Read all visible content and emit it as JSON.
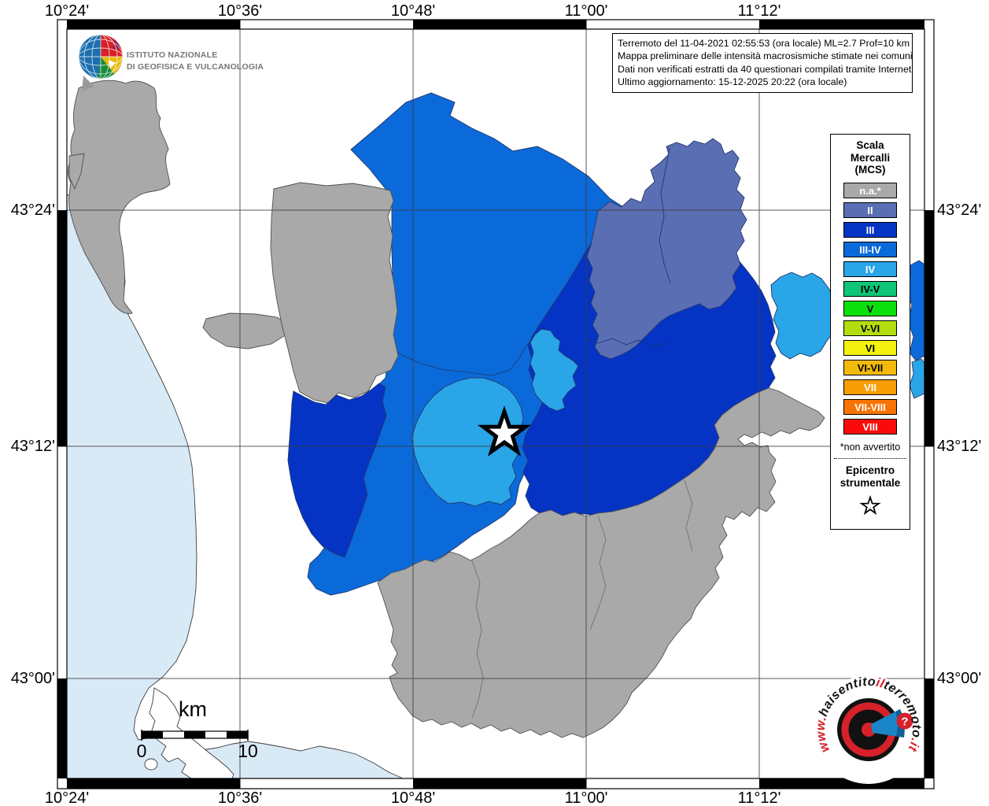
{
  "info_box": {
    "lines": [
      "Terremoto del 11-04-2021 02:55:53 (ora locale) ML=2.7 Prof=10 km",
      "Mappa preliminare delle intensità macrosismiche stimate nei comuni",
      "Dati non verificati estratti da 40 questionari compilati tramite Internet.",
      "Ultimo aggiornamento: 15-12-2025 20:22 (ora locale)"
    ]
  },
  "ingv": {
    "line1": "ISTITUTO NAZIONALE",
    "line2": "DI GEOFISICA E VULCANOLOGIA"
  },
  "legend": {
    "title_lines": [
      "Scala",
      "Mercalli",
      "(MCS)"
    ],
    "items": [
      {
        "label": "n.a.*",
        "color": "#a9a9a9",
        "text_color": "#ffffff"
      },
      {
        "label": "II",
        "color": "#5a6eb4",
        "text_color": "#ffffff"
      },
      {
        "label": "III",
        "color": "#0534c4",
        "text_color": "#ffffff"
      },
      {
        "label": "III-IV",
        "color": "#0b6ada",
        "text_color": "#ffffff"
      },
      {
        "label": "IV",
        "color": "#29a5e8",
        "text_color": "#ffffff"
      },
      {
        "label": "IV-V",
        "color": "#10c578",
        "text_color": "#000000"
      },
      {
        "label": "V",
        "color": "#0ce00c",
        "text_color": "#000000"
      },
      {
        "label": "V-VI",
        "color": "#b4dd10",
        "text_color": "#000000"
      },
      {
        "label": "VI",
        "color": "#f2f20e",
        "text_color": "#000000"
      },
      {
        "label": "VI-VII",
        "color": "#f2ba0a",
        "text_color": "#000000"
      },
      {
        "label": "VII",
        "color": "#f89d05",
        "text_color": "#ffffff"
      },
      {
        "label": "VII-VIII",
        "color": "#f87305",
        "text_color": "#ffffff"
      },
      {
        "label": "VIII",
        "color": "#fa0b0b",
        "text_color": "#ffffff"
      }
    ],
    "footnote": "*non avvertito",
    "epicenter_line1": "Epicentro",
    "epicenter_line2": "strumentale"
  },
  "axes": {
    "top": [
      "10°24'",
      "10°36'",
      "10°48'",
      "11°00'",
      "11°12'"
    ],
    "bottom": [
      "10°24'",
      "10°36'",
      "10°48'",
      "11°00'",
      "11°12'"
    ],
    "left": [
      "43°24'",
      "43°12'",
      "43°00'"
    ],
    "right": [
      "43°24'",
      "43°12'",
      "43°00'"
    ]
  },
  "scale_bar": {
    "unit": "km",
    "start": "0",
    "end": "10"
  },
  "branding": {
    "circular_text": "www.haisentitoilterremoto.it",
    "parts": [
      {
        "text": "www.",
        "color": "#d6212a"
      },
      {
        "text": "haisentito",
        "color": "#141414"
      },
      {
        "text": "il",
        "color": "#d6212a"
      },
      {
        "text": "terremoto",
        "color": "#141414"
      },
      {
        "text": ".it",
        "color": "#d6212a"
      }
    ],
    "question_mark": "?"
  },
  "map": {
    "sea_color": "#d9eaf7",
    "intensity_colors": {
      "na": "#a9a9a9",
      "II": "#5a6eb4",
      "III": "#0534c4",
      "III-IV": "#0b6ada",
      "IV": "#29a5e8"
    }
  }
}
